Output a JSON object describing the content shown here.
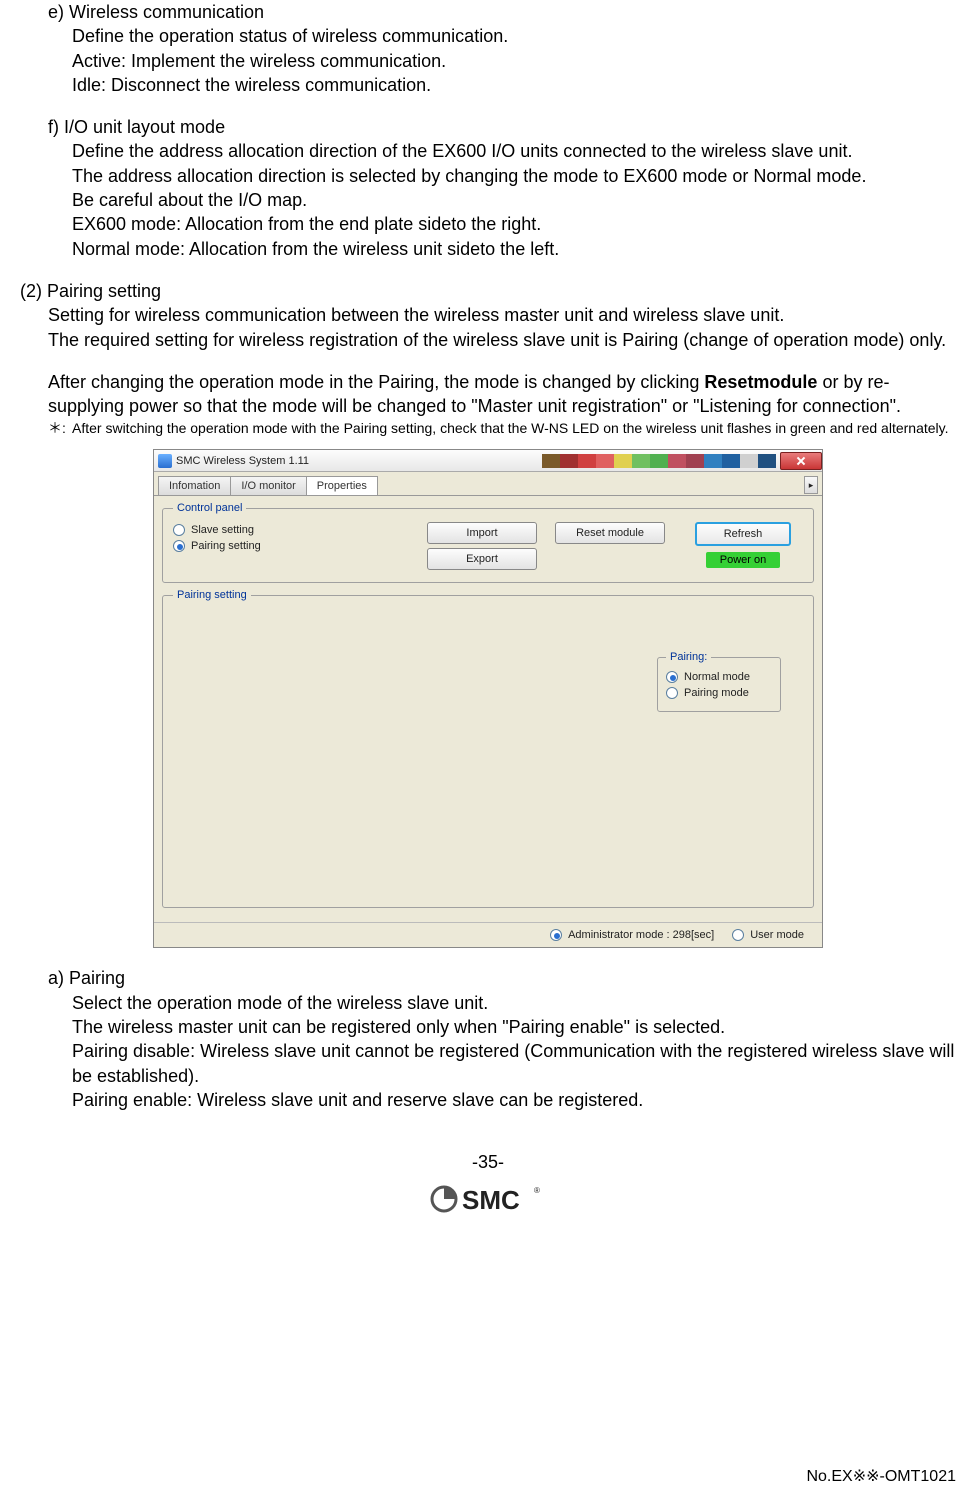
{
  "section_e": {
    "title": "e) Wireless communication",
    "lines": [
      "Define the operation status of wireless communication.",
      "Active: Implement the wireless communication.",
      "Idle: Disconnect the wireless communication."
    ]
  },
  "section_f": {
    "title": "f) I/O unit layout mode",
    "lines": [
      "Define the address allocation direction of the EX600 I/O units connected to the wireless slave unit.",
      "The address allocation direction is selected by changing the mode to EX600 mode or Normal mode.",
      "Be careful about the I/O map.",
      "EX600 mode: Allocation from the end plate sideto the right.",
      "Normal mode: Allocation from the wireless unit sideto the left."
    ]
  },
  "pairing": {
    "heading": "(2) Pairing setting",
    "p1": "Setting for wireless communication between the wireless master unit and wireless slave unit.",
    "p2": "The required setting for wireless registration of the wireless slave unit is Pairing (change of operation mode) only.",
    "p3_pre": "After changing the operation mode in the Pairing, the mode is changed by clicking ",
    "p3_bold": "Resetmodule",
    "p3_post": " or by re-supplying power so that the mode will be changed to \"Master unit registration\" or \"Listening for connection\".",
    "note": "After switching the operation mode with the Pairing setting, check that the W-NS LED on the wireless unit flashes in green and red alternately.",
    "note_prefix": "＊:"
  },
  "section_a": {
    "title": "a) Pairing",
    "lines": [
      "Select the operation mode of the wireless slave unit.",
      "The wireless master unit can be registered only when \"Pairing enable\" is selected.",
      "Pairing disable: Wireless slave unit cannot be registered (Communication with the registered wireless slave will be established).",
      "Pairing enable: Wireless slave unit and reserve slave can be registered."
    ]
  },
  "screenshot": {
    "title": "SMC Wireless System 1.11",
    "tabs": {
      "info": "Infomation",
      "io": "I/O monitor",
      "prop": "Properties"
    },
    "control_panel": {
      "legend": "Control panel",
      "slave": "Slave setting",
      "pairing": "Pairing setting",
      "import": "Import",
      "export": "Export",
      "reset": "Reset module",
      "refresh": "Refresh",
      "power": "Power on"
    },
    "pairing_panel": {
      "legend": "Pairing setting",
      "box_legend": "Pairing:",
      "normal": "Normal mode",
      "pairing": "Pairing mode"
    },
    "status": {
      "admin": "Administrator mode : 298[sec]",
      "user": "User mode"
    },
    "colorbar": [
      "#7a5a2a",
      "#a03030",
      "#d04040",
      "#e06060",
      "#e0d050",
      "#70c060",
      "#50b050",
      "#c05060",
      "#a04050",
      "#3080c0",
      "#2060a0",
      "#d0d0d0",
      "#205080"
    ]
  },
  "footer": {
    "page": "-35-",
    "logo": "SMC",
    "docno": "No.EX※※-OMT1021"
  }
}
